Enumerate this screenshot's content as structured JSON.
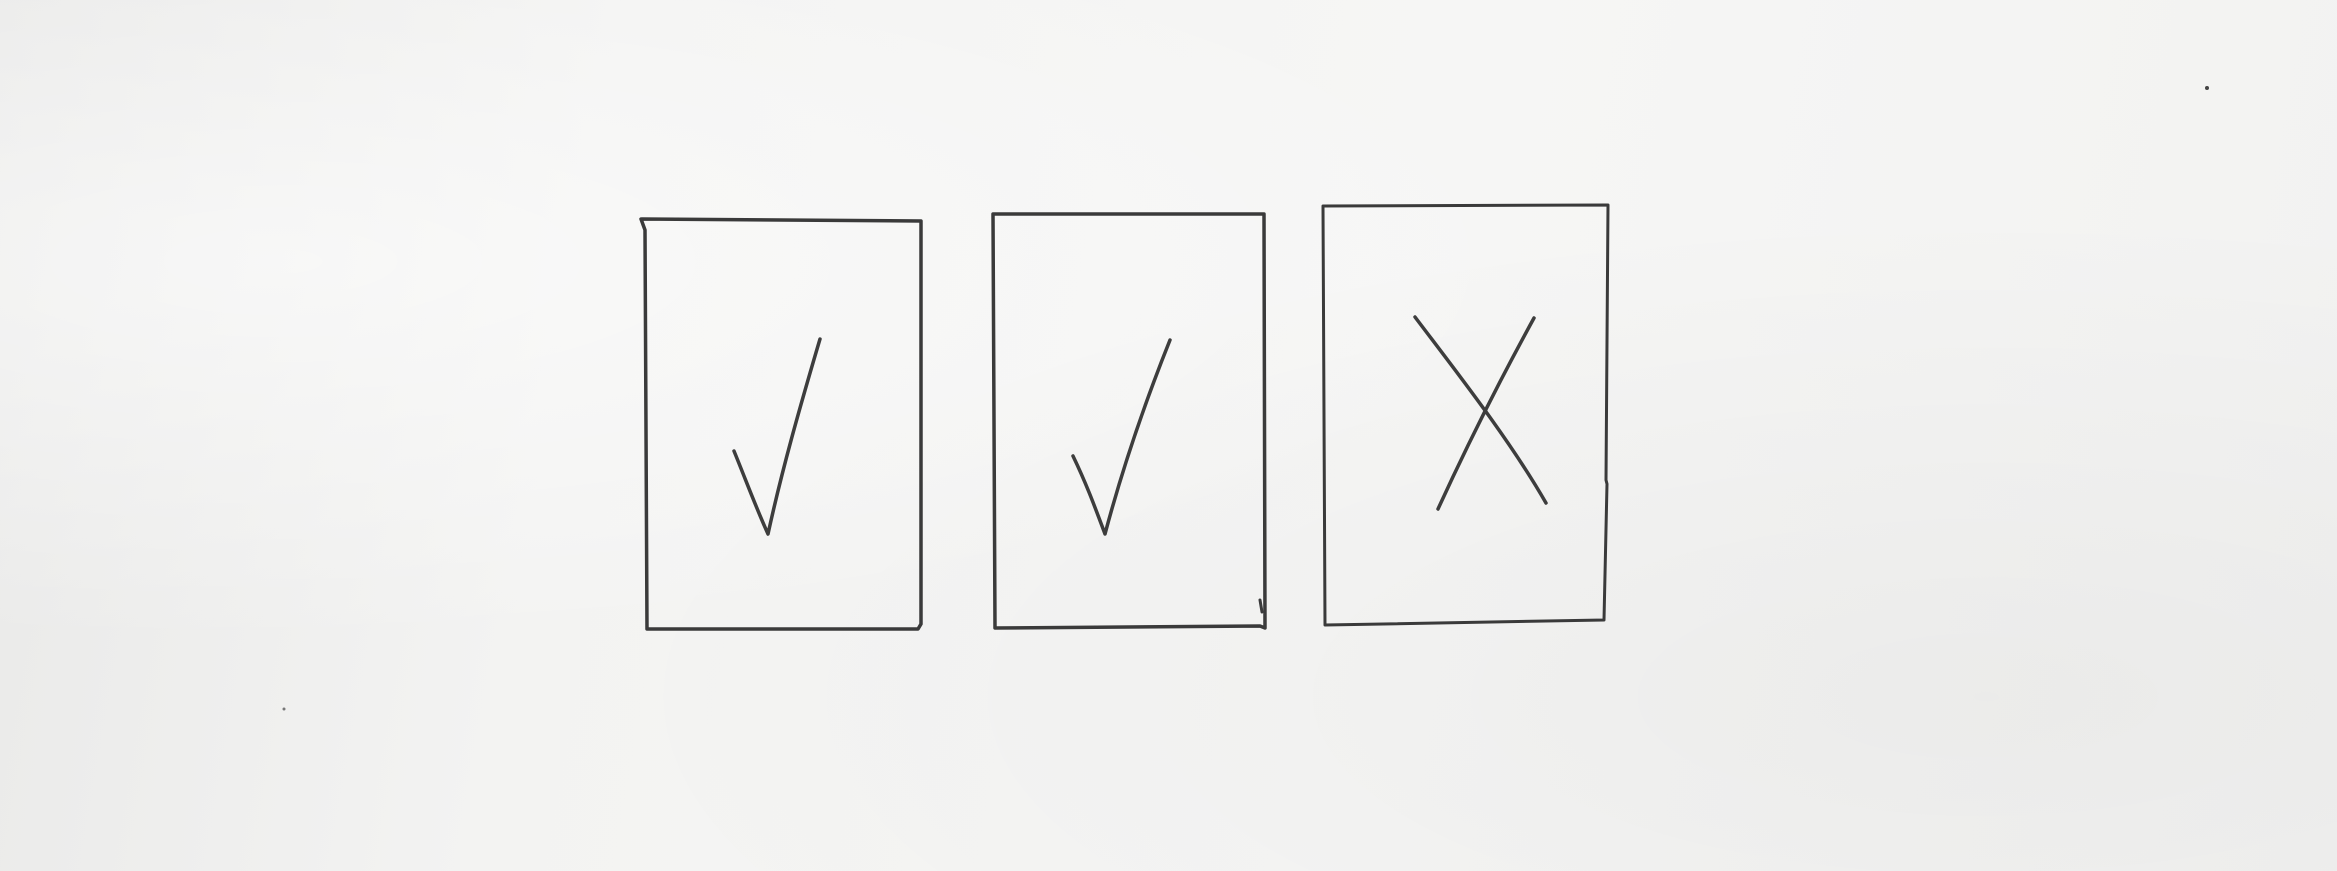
{
  "sheet": {
    "background": "#f3f3f2",
    "ink_color": "#3a3a3a"
  },
  "boxes": [
    {
      "mark": "check-mark-icon",
      "state": "checked"
    },
    {
      "mark": "check-mark-icon",
      "state": "checked"
    },
    {
      "mark": "x-mark-icon",
      "state": "crossed"
    }
  ]
}
